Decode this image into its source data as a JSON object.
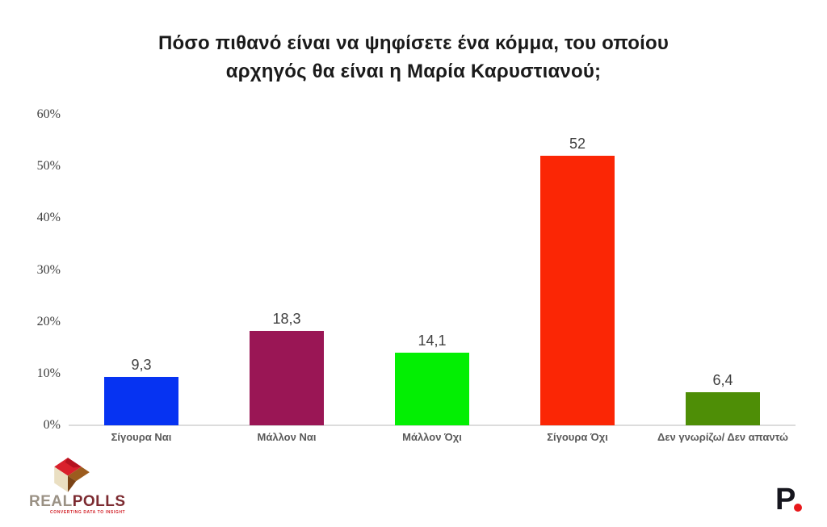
{
  "title": {
    "line1": "Πόσο πιθανό είναι να ψηφίσετε ένα κόμμα, του οποίου",
    "line2": "αρχηγός θα είναι η Μαρία Καρυστιανού;"
  },
  "chart_data": {
    "type": "bar",
    "title": "Πόσο πιθανό είναι να ψηφίσετε ένα κόμμα, του οποίου αρχηγός θα είναι η Μαρία Καρυστιανού;",
    "categories": [
      "Σίγουρα Ναι",
      "Μάλλον Ναι",
      "Μάλλον Όχι",
      "Σίγουρα Όχι",
      "Δεν γνωρίζω/ Δεν απαντώ"
    ],
    "values": [
      9.3,
      18.3,
      14.1,
      52,
      6.4
    ],
    "value_labels": [
      "9,3",
      "18,3",
      "14,1",
      "52",
      "6,4"
    ],
    "bar_colors": [
      "#0633f2",
      "#9a1655",
      "#03ef03",
      "#fb2605",
      "#4e8e06"
    ],
    "xlabel": "",
    "ylabel": "",
    "ylim": [
      0,
      60
    ],
    "ytick_values": [
      0,
      10,
      20,
      30,
      40,
      50,
      60
    ],
    "ytick_labels": [
      "0%",
      "10%",
      "20%",
      "30%",
      "40%",
      "50%",
      "60%"
    ],
    "grid": "off",
    "legend": "none"
  },
  "footer": {
    "realpolls": {
      "brand_real": "REAL",
      "brand_polls": "POLLS",
      "tagline": "CONVERTING DATA TO INSIGHT"
    },
    "politic": {
      "letter": "P"
    }
  },
  "colors": {
    "background": "#ffffff",
    "title_text": "#1a1a1a",
    "axis_line": "#dcdcdc",
    "tick_text": "#3d3d3d",
    "value_text": "#404040",
    "category_text": "#595959",
    "realpolls_real": "#9a9184",
    "realpolls_polls": "#7c2b31",
    "realpolls_tagline": "#d2232a",
    "politic_letter": "#16161e",
    "politic_dot": "#e8191c"
  }
}
